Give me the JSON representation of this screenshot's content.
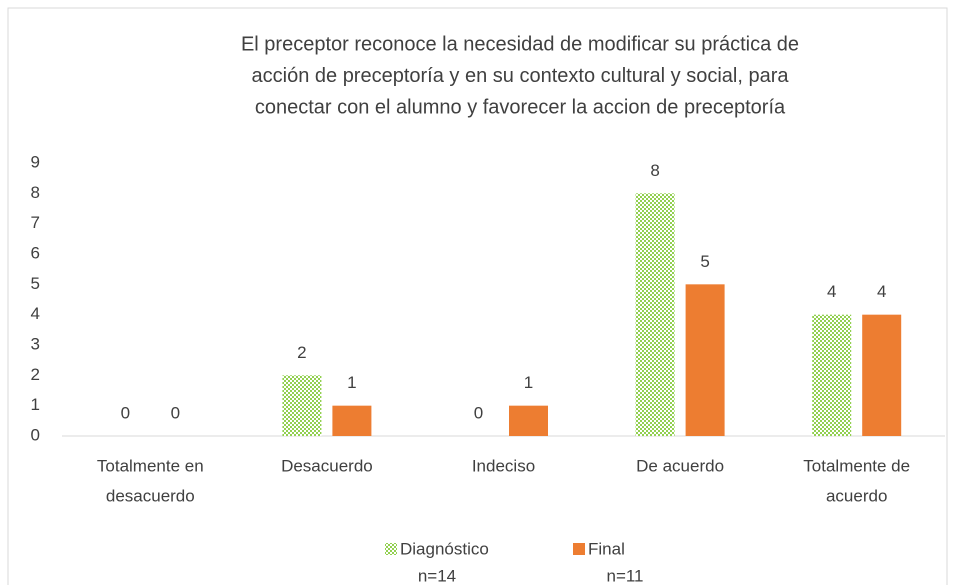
{
  "chart_data": {
    "type": "bar",
    "title": [
      "El preceptor reconoce la necesidad de modificar su práctica de",
      "acción de preceptoría y en su contexto cultural y social, para",
      "conectar con el alumno y favorecer la accion de preceptoría"
    ],
    "categories": [
      [
        "Totalmente en",
        "desacuerdo"
      ],
      [
        "Desacuerdo"
      ],
      [
        "Indeciso"
      ],
      [
        "De acuerdo"
      ],
      [
        "Totalmente de",
        "acuerdo"
      ]
    ],
    "series": [
      {
        "name": "Diagnóstico",
        "note": "n=14",
        "color": "#92d050",
        "pattern": "dots",
        "values": [
          0,
          2,
          0,
          8,
          4
        ]
      },
      {
        "name": "Final",
        "note": "n=11",
        "color": "#ed7d31",
        "values": [
          0,
          1,
          1,
          5,
          4
        ]
      }
    ],
    "ylim": [
      0,
      9
    ],
    "yticks": [
      0,
      1,
      2,
      3,
      4,
      5,
      6,
      7,
      8,
      9
    ],
    "grid": false,
    "legend": "bottom"
  }
}
